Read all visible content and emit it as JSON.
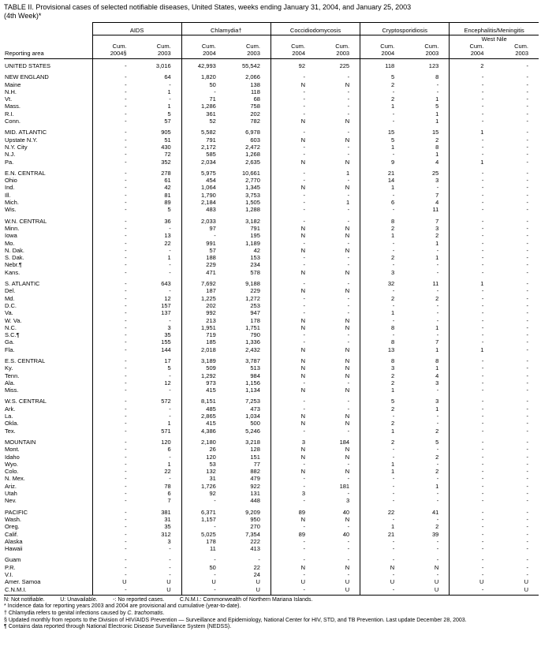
{
  "title": {
    "line1": "TABLE II. Provisional cases of selected notifiable diseases, United States, weeks ending January 31, 2004, and January 25, 2003",
    "line2": "(4th Week)*"
  },
  "header": {
    "reporting_area": "Reporting area",
    "groups": [
      "AIDS",
      "Chlamydia†",
      "Coccidiodomycosis",
      "Cryptosporidiosis"
    ],
    "west_nile": {
      "line1": "Encephalitis/Meningitis",
      "line2": "West Nile"
    },
    "sub": [
      {
        "l1": "Cum.",
        "l2": "2004§"
      },
      {
        "l1": "Cum.",
        "l2": "2003"
      },
      {
        "l1": "Cum.",
        "l2": "2004"
      },
      {
        "l1": "Cum.",
        "l2": "2003"
      },
      {
        "l1": "Cum.",
        "l2": "2004"
      },
      {
        "l1": "Cum.",
        "l2": "2003"
      },
      {
        "l1": "Cum.",
        "l2": "2004"
      },
      {
        "l1": "Cum.",
        "l2": "2003"
      },
      {
        "l1": "Cum.",
        "l2": "2004"
      },
      {
        "l1": "Cum.",
        "l2": "2003"
      }
    ]
  },
  "rows": [
    {
      "a": "UNITED STATES",
      "t": "total",
      "gap": false,
      "v": [
        "-",
        "3,016",
        "42,993",
        "55,542",
        "92",
        "225",
        "118",
        "123",
        "2",
        "-"
      ]
    },
    {
      "a": "NEW ENGLAND",
      "t": "region",
      "gap": true,
      "v": [
        "-",
        "64",
        "1,820",
        "2,066",
        "-",
        "-",
        "5",
        "8",
        "-",
        "-"
      ]
    },
    {
      "a": "Maine",
      "t": "state",
      "gap": false,
      "v": [
        "-",
        "-",
        "50",
        "138",
        "N",
        "N",
        "2",
        "-",
        "-",
        "-"
      ]
    },
    {
      "a": "N.H.",
      "t": "state",
      "gap": false,
      "v": [
        "-",
        "1",
        "-",
        "118",
        "-",
        "-",
        "-",
        "-",
        "-",
        "-"
      ]
    },
    {
      "a": "Vt.",
      "t": "state",
      "gap": false,
      "v": [
        "-",
        "-",
        "71",
        "68",
        "-",
        "-",
        "2",
        "1",
        "-",
        "-"
      ]
    },
    {
      "a": "Mass.",
      "t": "state",
      "gap": false,
      "v": [
        "-",
        "1",
        "1,286",
        "758",
        "-",
        "-",
        "1",
        "5",
        "-",
        "-"
      ]
    },
    {
      "a": "R.I.",
      "t": "state",
      "gap": false,
      "v": [
        "-",
        "5",
        "361",
        "202",
        "-",
        "-",
        "-",
        "1",
        "-",
        "-"
      ]
    },
    {
      "a": "Conn.",
      "t": "state",
      "gap": false,
      "v": [
        "-",
        "57",
        "52",
        "782",
        "N",
        "N",
        "-",
        "1",
        "-",
        "-"
      ]
    },
    {
      "a": "MID. ATLANTIC",
      "t": "region",
      "gap": true,
      "v": [
        "-",
        "905",
        "5,582",
        "6,978",
        "-",
        "-",
        "15",
        "15",
        "1",
        "-"
      ]
    },
    {
      "a": "Upstate N.Y.",
      "t": "state",
      "gap": false,
      "v": [
        "-",
        "51",
        "791",
        "603",
        "N",
        "N",
        "5",
        "2",
        "-",
        "-"
      ]
    },
    {
      "a": "N.Y. City",
      "t": "state",
      "gap": false,
      "v": [
        "-",
        "430",
        "2,172",
        "2,472",
        "-",
        "-",
        "1",
        "8",
        "-",
        "-"
      ]
    },
    {
      "a": "N.J.",
      "t": "state",
      "gap": false,
      "v": [
        "-",
        "72",
        "585",
        "1,268",
        "-",
        "-",
        "-",
        "1",
        "-",
        "-"
      ]
    },
    {
      "a": "Pa.",
      "t": "state",
      "gap": false,
      "v": [
        "-",
        "352",
        "2,034",
        "2,635",
        "N",
        "N",
        "9",
        "4",
        "1",
        "-"
      ]
    },
    {
      "a": "E.N. CENTRAL",
      "t": "region",
      "gap": true,
      "v": [
        "-",
        "278",
        "5,975",
        "10,661",
        "-",
        "1",
        "21",
        "25",
        "-",
        "-"
      ]
    },
    {
      "a": "Ohio",
      "t": "state",
      "gap": false,
      "v": [
        "-",
        "61",
        "454",
        "2,770",
        "-",
        "-",
        "14",
        "3",
        "-",
        "-"
      ]
    },
    {
      "a": "Ind.",
      "t": "state",
      "gap": false,
      "v": [
        "-",
        "42",
        "1,064",
        "1,345",
        "N",
        "N",
        "1",
        "-",
        "-",
        "-"
      ]
    },
    {
      "a": "Ill.",
      "t": "state",
      "gap": false,
      "v": [
        "-",
        "81",
        "1,790",
        "3,753",
        "-",
        "-",
        "-",
        "7",
        "-",
        "-"
      ]
    },
    {
      "a": "Mich.",
      "t": "state",
      "gap": false,
      "v": [
        "-",
        "89",
        "2,184",
        "1,505",
        "-",
        "1",
        "6",
        "4",
        "-",
        "-"
      ]
    },
    {
      "a": "Wis.",
      "t": "state",
      "gap": false,
      "v": [
        "-",
        "5",
        "483",
        "1,288",
        "-",
        "-",
        "-",
        "11",
        "-",
        "-"
      ]
    },
    {
      "a": "W.N. CENTRAL",
      "t": "region",
      "gap": true,
      "v": [
        "-",
        "36",
        "2,033",
        "3,182",
        "-",
        "-",
        "8",
        "7",
        "-",
        "-"
      ]
    },
    {
      "a": "Minn.",
      "t": "state",
      "gap": false,
      "v": [
        "-",
        "-",
        "97",
        "791",
        "N",
        "N",
        "2",
        "3",
        "-",
        "-"
      ]
    },
    {
      "a": "Iowa",
      "t": "state",
      "gap": false,
      "v": [
        "-",
        "13",
        "-",
        "195",
        "N",
        "N",
        "1",
        "2",
        "-",
        "-"
      ]
    },
    {
      "a": "Mo.",
      "t": "state",
      "gap": false,
      "v": [
        "-",
        "22",
        "991",
        "1,189",
        "-",
        "-",
        "-",
        "1",
        "-",
        "-"
      ]
    },
    {
      "a": "N. Dak.",
      "t": "state",
      "gap": false,
      "v": [
        "-",
        "-",
        "57",
        "42",
        "N",
        "N",
        "-",
        "-",
        "-",
        "-"
      ]
    },
    {
      "a": "S. Dak.",
      "t": "state",
      "gap": false,
      "v": [
        "-",
        "1",
        "188",
        "153",
        "-",
        "-",
        "2",
        "1",
        "-",
        "-"
      ]
    },
    {
      "a": "Nebr.¶",
      "t": "state",
      "gap": false,
      "v": [
        "-",
        "-",
        "229",
        "234",
        "-",
        "-",
        "-",
        "-",
        "-",
        "-"
      ]
    },
    {
      "a": "Kans.",
      "t": "state",
      "gap": false,
      "v": [
        "-",
        "-",
        "471",
        "578",
        "N",
        "N",
        "3",
        "-",
        "-",
        "-"
      ]
    },
    {
      "a": "S. ATLANTIC",
      "t": "region",
      "gap": true,
      "v": [
        "-",
        "643",
        "7,692",
        "9,188",
        "-",
        "-",
        "32",
        "11",
        "1",
        "-"
      ]
    },
    {
      "a": "Del.",
      "t": "state",
      "gap": false,
      "v": [
        "-",
        "-",
        "187",
        "229",
        "N",
        "N",
        "-",
        "-",
        "-",
        "-"
      ]
    },
    {
      "a": "Md.",
      "t": "state",
      "gap": false,
      "v": [
        "-",
        "12",
        "1,225",
        "1,272",
        "-",
        "-",
        "2",
        "2",
        "-",
        "-"
      ]
    },
    {
      "a": "D.C.",
      "t": "state",
      "gap": false,
      "v": [
        "-",
        "157",
        "202",
        "253",
        "-",
        "-",
        "-",
        "-",
        "-",
        "-"
      ]
    },
    {
      "a": "Va.",
      "t": "state",
      "gap": false,
      "v": [
        "-",
        "137",
        "992",
        "947",
        "-",
        "-",
        "1",
        "-",
        "-",
        "-"
      ]
    },
    {
      "a": "W. Va.",
      "t": "state",
      "gap": false,
      "v": [
        "-",
        "-",
        "213",
        "178",
        "N",
        "N",
        "-",
        "-",
        "-",
        "-"
      ]
    },
    {
      "a": "N.C.",
      "t": "state",
      "gap": false,
      "v": [
        "-",
        "3",
        "1,951",
        "1,751",
        "N",
        "N",
        "8",
        "1",
        "-",
        "-"
      ]
    },
    {
      "a": "S.C.¶",
      "t": "state",
      "gap": false,
      "v": [
        "-",
        "35",
        "719",
        "790",
        "-",
        "-",
        "-",
        "-",
        "-",
        "-"
      ]
    },
    {
      "a": "Ga.",
      "t": "state",
      "gap": false,
      "v": [
        "-",
        "155",
        "185",
        "1,336",
        "-",
        "-",
        "8",
        "7",
        "-",
        "-"
      ]
    },
    {
      "a": "Fla.",
      "t": "state",
      "gap": false,
      "v": [
        "-",
        "144",
        "2,018",
        "2,432",
        "N",
        "N",
        "13",
        "1",
        "1",
        "-"
      ]
    },
    {
      "a": "E.S. CENTRAL",
      "t": "region",
      "gap": true,
      "v": [
        "-",
        "17",
        "3,189",
        "3,787",
        "N",
        "N",
        "8",
        "8",
        "-",
        "-"
      ]
    },
    {
      "a": "Ky.",
      "t": "state",
      "gap": false,
      "v": [
        "-",
        "5",
        "509",
        "513",
        "N",
        "N",
        "3",
        "1",
        "-",
        "-"
      ]
    },
    {
      "a": "Tenn.",
      "t": "state",
      "gap": false,
      "v": [
        "-",
        "-",
        "1,292",
        "984",
        "N",
        "N",
        "2",
        "4",
        "-",
        "-"
      ]
    },
    {
      "a": "Ala.",
      "t": "state",
      "gap": false,
      "v": [
        "-",
        "12",
        "973",
        "1,156",
        "-",
        "-",
        "2",
        "3",
        "-",
        "-"
      ]
    },
    {
      "a": "Miss.",
      "t": "state",
      "gap": false,
      "v": [
        "-",
        "-",
        "415",
        "1,134",
        "N",
        "N",
        "1",
        "-",
        "-",
        "-"
      ]
    },
    {
      "a": "W.S. CENTRAL",
      "t": "region",
      "gap": true,
      "v": [
        "-",
        "572",
        "8,151",
        "7,253",
        "-",
        "-",
        "5",
        "3",
        "-",
        "-"
      ]
    },
    {
      "a": "Ark.",
      "t": "state",
      "gap": false,
      "v": [
        "-",
        "-",
        "485",
        "473",
        "-",
        "-",
        "2",
        "1",
        "-",
        "-"
      ]
    },
    {
      "a": "La.",
      "t": "state",
      "gap": false,
      "v": [
        "-",
        "-",
        "2,865",
        "1,034",
        "N",
        "N",
        "-",
        "-",
        "-",
        "-"
      ]
    },
    {
      "a": "Okla.",
      "t": "state",
      "gap": false,
      "v": [
        "-",
        "1",
        "415",
        "500",
        "N",
        "N",
        "2",
        "-",
        "-",
        "-"
      ]
    },
    {
      "a": "Tex.",
      "t": "state",
      "gap": false,
      "v": [
        "-",
        "571",
        "4,386",
        "5,246",
        "-",
        "-",
        "1",
        "2",
        "-",
        "-"
      ]
    },
    {
      "a": "MOUNTAIN",
      "t": "region",
      "gap": true,
      "v": [
        "-",
        "120",
        "2,180",
        "3,218",
        "3",
        "184",
        "2",
        "5",
        "-",
        "-"
      ]
    },
    {
      "a": "Mont.",
      "t": "state",
      "gap": false,
      "v": [
        "-",
        "6",
        "26",
        "128",
        "N",
        "N",
        "-",
        "-",
        "-",
        "-"
      ]
    },
    {
      "a": "Idaho",
      "t": "state",
      "gap": false,
      "v": [
        "-",
        "-",
        "120",
        "151",
        "N",
        "N",
        "-",
        "2",
        "-",
        "-"
      ]
    },
    {
      "a": "Wyo.",
      "t": "state",
      "gap": false,
      "v": [
        "-",
        "1",
        "53",
        "77",
        "-",
        "-",
        "1",
        "-",
        "-",
        "-"
      ]
    },
    {
      "a": "Colo.",
      "t": "state",
      "gap": false,
      "v": [
        "-",
        "22",
        "132",
        "882",
        "N",
        "N",
        "1",
        "2",
        "-",
        "-"
      ]
    },
    {
      "a": "N. Mex.",
      "t": "state",
      "gap": false,
      "v": [
        "-",
        "-",
        "31",
        "479",
        "-",
        "-",
        "-",
        "-",
        "-",
        "-"
      ]
    },
    {
      "a": "Ariz.",
      "t": "state",
      "gap": false,
      "v": [
        "-",
        "78",
        "1,726",
        "922",
        "-",
        "181",
        "-",
        "1",
        "-",
        "-"
      ]
    },
    {
      "a": "Utah",
      "t": "state",
      "gap": false,
      "v": [
        "-",
        "6",
        "92",
        "131",
        "3",
        "-",
        "-",
        "-",
        "-",
        "-"
      ]
    },
    {
      "a": "Nev.",
      "t": "state",
      "gap": false,
      "v": [
        "-",
        "7",
        "-",
        "448",
        "-",
        "3",
        "-",
        "-",
        "-",
        "-"
      ]
    },
    {
      "a": "PACIFIC",
      "t": "region",
      "gap": true,
      "v": [
        "-",
        "381",
        "6,371",
        "9,209",
        "89",
        "40",
        "22",
        "41",
        "-",
        "-"
      ]
    },
    {
      "a": "Wash.",
      "t": "state",
      "gap": false,
      "v": [
        "-",
        "31",
        "1,157",
        "950",
        "N",
        "N",
        "-",
        "-",
        "-",
        "-"
      ]
    },
    {
      "a": "Oreg.",
      "t": "state",
      "gap": false,
      "v": [
        "-",
        "35",
        "-",
        "270",
        "-",
        "-",
        "1",
        "2",
        "-",
        "-"
      ]
    },
    {
      "a": "Calif.",
      "t": "state",
      "gap": false,
      "v": [
        "-",
        "312",
        "5,025",
        "7,354",
        "89",
        "40",
        "21",
        "39",
        "-",
        "-"
      ]
    },
    {
      "a": "Alaska",
      "t": "state",
      "gap": false,
      "v": [
        "-",
        "3",
        "178",
        "222",
        "-",
        "-",
        "-",
        "-",
        "-",
        "-"
      ]
    },
    {
      "a": "Hawaii",
      "t": "state",
      "gap": false,
      "v": [
        "-",
        "-",
        "11",
        "413",
        "-",
        "-",
        "-",
        "-",
        "-",
        "-"
      ]
    },
    {
      "a": "Guam",
      "t": "territory",
      "gap": true,
      "v": [
        "-",
        "-",
        "-",
        "-",
        "-",
        "-",
        "-",
        "-",
        "-",
        "-"
      ]
    },
    {
      "a": "P.R.",
      "t": "territory",
      "gap": false,
      "v": [
        "-",
        "-",
        "50",
        "22",
        "N",
        "N",
        "N",
        "N",
        "-",
        "-"
      ]
    },
    {
      "a": "V.I.",
      "t": "territory",
      "gap": false,
      "v": [
        "-",
        "-",
        "-",
        "24",
        "-",
        "-",
        "-",
        "-",
        "-",
        "-"
      ]
    },
    {
      "a": "Amer. Samoa",
      "t": "territory",
      "gap": false,
      "v": [
        "U",
        "U",
        "U",
        "U",
        "U",
        "U",
        "U",
        "U",
        "U",
        "U"
      ]
    },
    {
      "a": "C.N.M.I.",
      "t": "territory",
      "gap": false,
      "v": [
        "-",
        "U",
        "-",
        "U",
        "-",
        "U",
        "-",
        "U",
        "-",
        "U"
      ]
    }
  ],
  "footnotes": {
    "legend": "N: Not notifiable.          U: Unavailable.          -: No reported cases.          C.N.M.I.: Commonwealth of Northern Mariana Islands.",
    "star": "* Incidence data for reporting years 2003 and 2004 are provisional and cumulative (year-to-date).",
    "dagger_pre": "† Chlamydia refers to genital infections caused by ",
    "dagger_italic": "C. trachomatis",
    "dagger_post": ".",
    "section": "§ Updated monthly from reports to the Division of HIV/AIDS Prevention — Surveillance and Epidemiology, National Center for HIV, STD, and TB Prevention. Last update December 28, 2003.",
    "pilcrow": "¶ Contains data reported through National Electronic Disease Surveillance System (NEDSS)."
  }
}
